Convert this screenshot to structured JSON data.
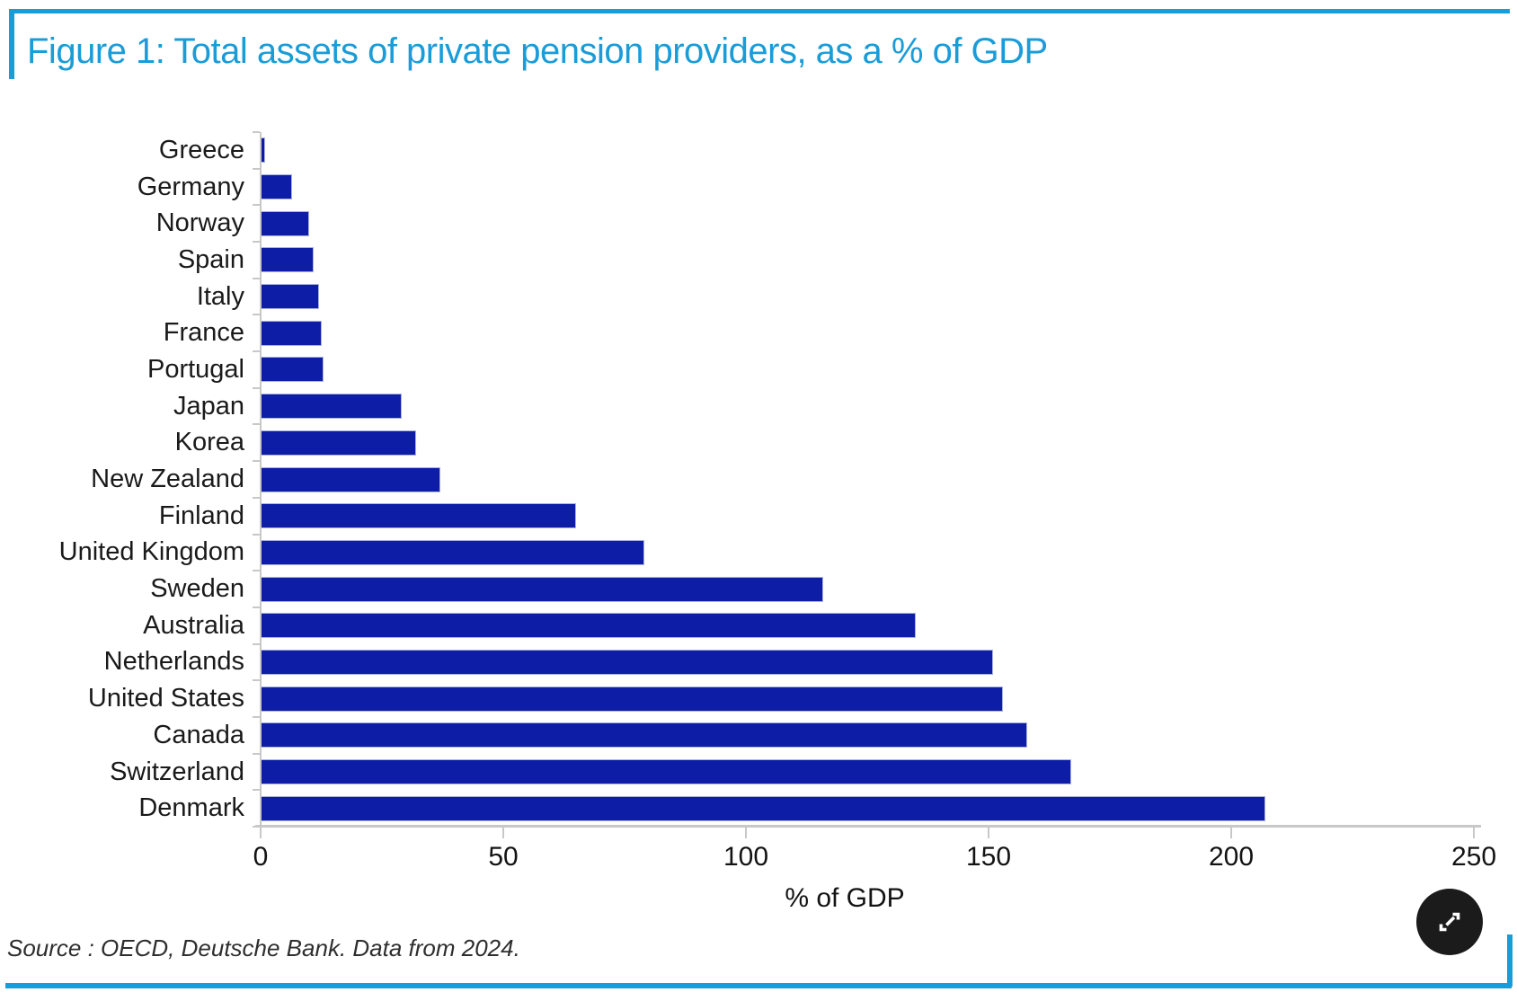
{
  "title": "Figure 1: Total assets of private pension providers, as a % of GDP",
  "source_note": "Source : OECD, Deutsche Bank. Data from 2024.",
  "colors": {
    "accent_blue": "#1a9cd8",
    "bar_navy": "#0e1da5",
    "axis_gray": "#c8c8c8"
  },
  "expand_button": {
    "icon": "expand-icon"
  },
  "chart_data": {
    "type": "bar",
    "orientation": "horizontal",
    "title": "Figure 1: Total assets of private pension providers, as a % of GDP",
    "xlabel": "% of GDP",
    "ylabel": "",
    "xlim": [
      0,
      250
    ],
    "xticks": [
      0,
      50,
      100,
      150,
      200,
      250
    ],
    "grid": false,
    "legend": "none",
    "categories": [
      "Greece",
      "Germany",
      "Norway",
      "Spain",
      "Italy",
      "France",
      "Portugal",
      "Japan",
      "Korea",
      "New Zealand",
      "Finland",
      "United Kingdom",
      "Sweden",
      "Australia",
      "Netherlands",
      "United States",
      "Canada",
      "Switzerland",
      "Denmark"
    ],
    "values": [
      1,
      6.5,
      10,
      11,
      12,
      12.5,
      13,
      29,
      32,
      37,
      65,
      79,
      116,
      135,
      151,
      153,
      158,
      167,
      207
    ],
    "source": "Source : OECD, Deutsche Bank. Data from 2024."
  }
}
